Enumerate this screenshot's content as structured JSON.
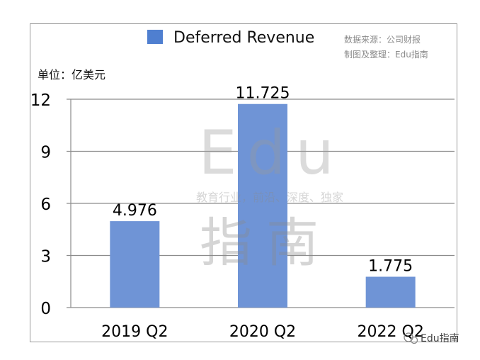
{
  "chart_data": {
    "type": "bar",
    "title": "",
    "legend": {
      "entries": [
        "Deferred Revenue"
      ],
      "position": "top"
    },
    "unit_label": "单位：亿美元",
    "source_note": [
      "数据来源：公司财报",
      "制图及整理：Edu指南"
    ],
    "categories": [
      "2019 Q2",
      "2020 Q2",
      "2022 Q2"
    ],
    "series": [
      {
        "name": "Deferred Revenue",
        "values": [
          4.976,
          11.725,
          1.775
        ],
        "labels": [
          "4.976",
          "11.725",
          "1.775"
        ]
      }
    ],
    "yticks": [
      0,
      3,
      6,
      9,
      12
    ],
    "ylim": [
      0,
      12
    ],
    "grid": true,
    "colors": {
      "bar": "#6f94d6",
      "legend_swatch": "#4f7fd0",
      "grid": "#8c8c8c",
      "text": "#000000"
    }
  },
  "watermark": {
    "text1": "Edu",
    "text2": "教育行业，前沿、深度、独家",
    "text3": "指南"
  },
  "footer": {
    "wechat_label": "Edu指南"
  }
}
